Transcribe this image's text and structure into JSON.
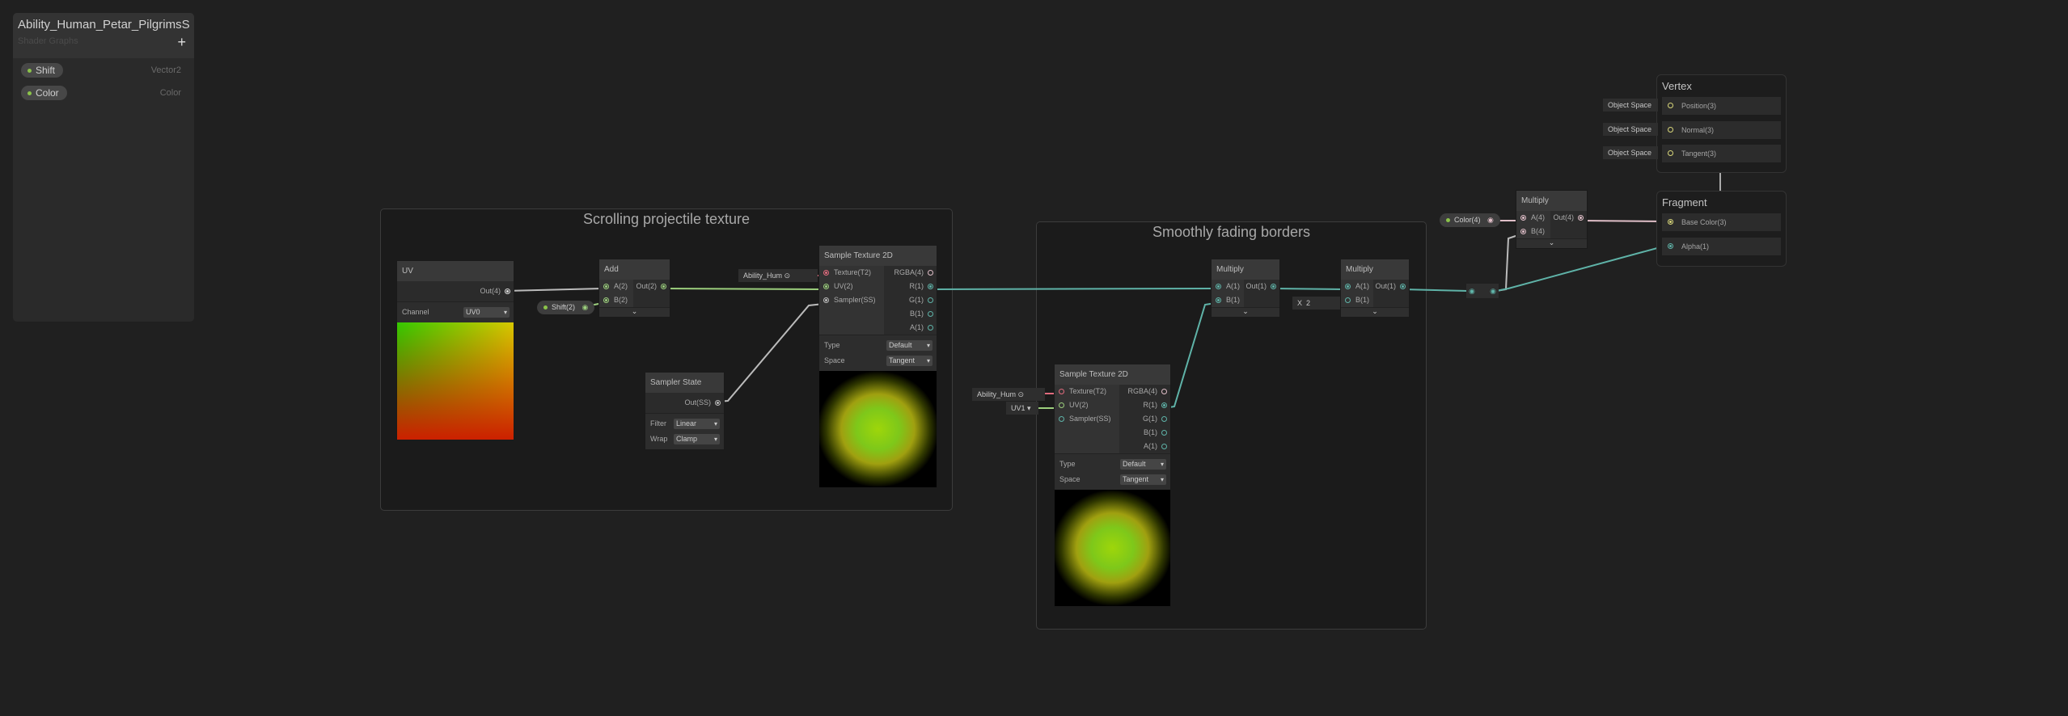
{
  "blackboard": {
    "title": "Ability_Human_Petar_PilgrimsStaff",
    "subtitle": "Shader Graphs",
    "add_label": "+",
    "properties": [
      {
        "name": "Shift",
        "type": "Vector2"
      },
      {
        "name": "Color",
        "type": "Color"
      }
    ]
  },
  "groups": [
    {
      "title": "Scrolling projectile texture"
    },
    {
      "title": "Smoothly fading borders"
    }
  ],
  "nodes": {
    "uv": {
      "title": "UV",
      "inputs": [],
      "outputs": [
        "Out(4)"
      ],
      "fields": [
        {
          "label": "Channel",
          "value": "UV0"
        }
      ]
    },
    "add": {
      "title": "Add",
      "inputs": [
        "A(2)",
        "B(2)"
      ],
      "outputs": [
        "Out(2)"
      ],
      "fields": []
    },
    "sample1": {
      "title": "Sample Texture 2D",
      "inputs": [
        "Texture(T2)",
        "UV(2)",
        "Sampler(SS)"
      ],
      "outputs": [
        "RGBA(4)",
        "R(1)",
        "G(1)",
        "B(1)",
        "A(1)"
      ],
      "fields": [
        {
          "label": "Type",
          "value": "Default"
        },
        {
          "label": "Space",
          "value": "Tangent"
        }
      ]
    },
    "sampler": {
      "title": "Sampler State",
      "inputs": [],
      "outputs": [
        "Out(SS)"
      ],
      "fields": [
        {
          "label": "Filter",
          "value": "Linear"
        },
        {
          "label": "Wrap",
          "value": "Clamp"
        }
      ]
    },
    "mul1": {
      "title": "Multiply",
      "inputs": [
        "A(1)",
        "B(1)"
      ],
      "outputs": [
        "Out(1)"
      ],
      "fields": []
    },
    "mul2": {
      "title": "Multiply",
      "inputs": [
        "A(1)",
        "B(1)"
      ],
      "outputs": [
        "Out(1)"
      ],
      "fields": []
    },
    "sample2": {
      "title": "Sample Texture 2D",
      "inputs": [
        "Texture(T2)",
        "UV(2)",
        "Sampler(SS)"
      ],
      "outputs": [
        "RGBA(4)",
        "R(1)",
        "G(1)",
        "B(1)",
        "A(1)"
      ],
      "fields": [
        {
          "label": "Type",
          "value": "Default"
        },
        {
          "label": "Space",
          "value": "Tangent"
        }
      ]
    },
    "mul3": {
      "title": "Multiply",
      "inputs": [
        "A(4)",
        "B(4)"
      ],
      "outputs": [
        "Out(4)"
      ],
      "fields": []
    }
  },
  "property_nodes": {
    "shift": "Shift(2)",
    "color": "Color(4)"
  },
  "inline_fields": {
    "texture1": "Ability_Hum",
    "texture2": "Ability_Hum",
    "uv_channel2": "UV1",
    "mul2_b_label": "X",
    "mul2_b_value": "2"
  },
  "master": {
    "vertex": {
      "title": "Vertex",
      "ports": [
        "Position(3)",
        "Normal(3)",
        "Tangent(3)"
      ],
      "space": "Object Space"
    },
    "fragment": {
      "title": "Fragment",
      "ports": [
        "Base Color(3)",
        "Alpha(1)"
      ]
    }
  },
  "colors": {
    "background": "#202020",
    "float_edge": "#5fb3a8",
    "vector2_edge": "#9ccf7d",
    "vector3_edge": "#d8d67a",
    "vector4_edge": "#e0bfc8",
    "texture_edge": "#e06b7d",
    "sampler_edge": "#bbbbbb"
  }
}
